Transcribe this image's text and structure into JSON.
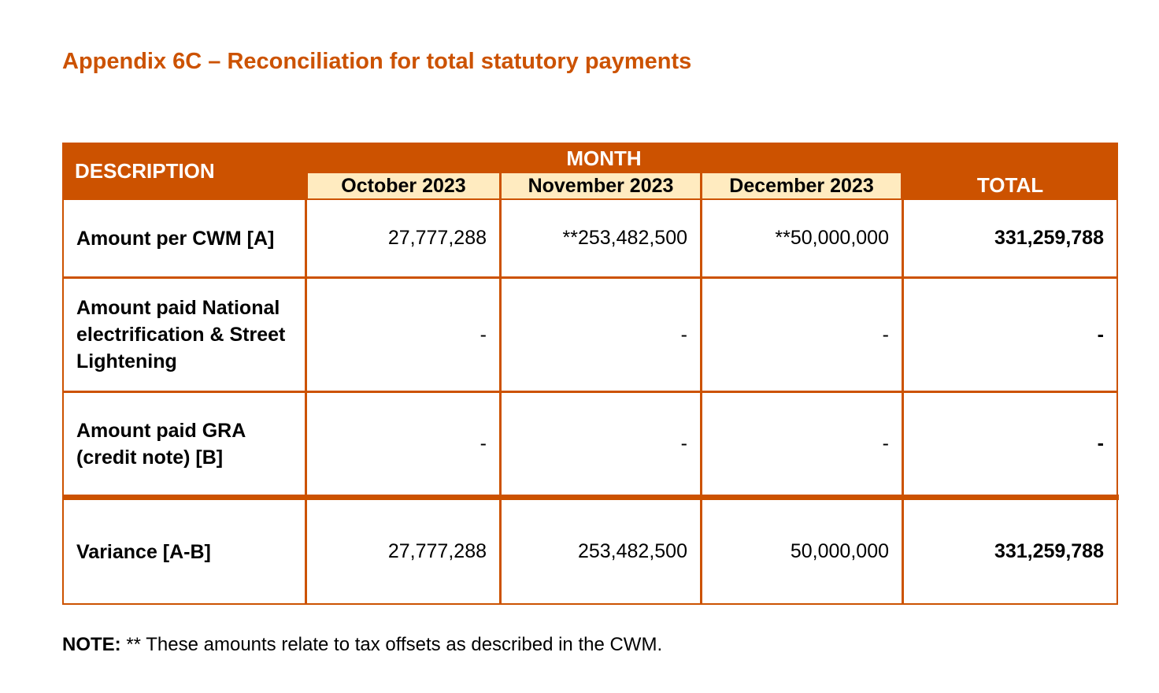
{
  "title": "Appendix 6C – Reconciliation for total statutory payments",
  "header": {
    "description": "DESCRIPTION",
    "month": "MONTH",
    "months": [
      "October 2023",
      "November 2023",
      "December 2023"
    ],
    "total": "TOTAL"
  },
  "rows": [
    {
      "label": "Amount per CWM [A]",
      "values": [
        "27,777,288",
        "**253,482,500",
        "**50,000,000"
      ],
      "total": "331,259,788"
    },
    {
      "label": "Amount paid National electrification & Street Lightening",
      "values": [
        "-",
        "-",
        "-"
      ],
      "total": "-"
    },
    {
      "label": "Amount paid GRA (credit note) [B]",
      "values": [
        "-",
        "-",
        "-"
      ],
      "total": "-"
    },
    {
      "label": "Variance [A-B]",
      "values": [
        "27,777,288",
        "253,482,500",
        "50,000,000"
      ],
      "total": "331,259,788"
    }
  ],
  "note": {
    "label": "NOTE:",
    "text": " ** These amounts relate to tax offsets as described in the CWM."
  },
  "colors": {
    "accent": "#CC5200",
    "subheader": "#FFEBC0"
  }
}
